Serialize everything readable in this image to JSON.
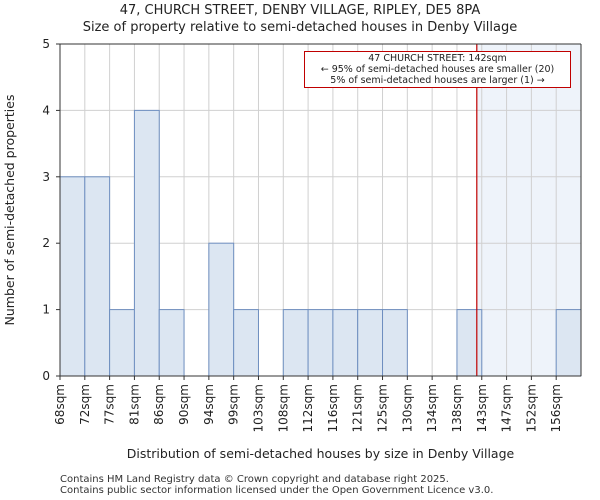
{
  "header": {
    "title_line1": "47, CHURCH STREET, DENBY VILLAGE, RIPLEY, DE5 8PA",
    "title_line2": "Size of property relative to semi-detached houses in Denby Village"
  },
  "footer": {
    "line1": "Contains HM Land Registry data © Crown copyright and database right 2025.",
    "line2": "Contains public sector information licensed under the Open Government Licence v3.0."
  },
  "annotation": {
    "line1": "47 CHURCH STREET: 142sqm",
    "line2": "← 95% of semi-detached houses are smaller (20)",
    "line3": "5% of semi-detached houses are larger (1) →"
  },
  "colors": {
    "bar_fill": "#dce6f2",
    "bar_stroke": "#6f8fc0",
    "marker": "#c00000",
    "grid": "#d0d0d0",
    "highlight": "#eef3fa"
  },
  "chart_data": {
    "type": "bar",
    "title": "Size of property relative to semi-detached houses in Denby Village",
    "xlabel": "Distribution of semi-detached houses by size in Denby Village",
    "ylabel": "Number of semi-detached properties",
    "categories": [
      "68sqm",
      "72sqm",
      "77sqm",
      "81sqm",
      "86sqm",
      "90sqm",
      "94sqm",
      "99sqm",
      "103sqm",
      "108sqm",
      "112sqm",
      "116sqm",
      "121sqm",
      "125sqm",
      "130sqm",
      "134sqm",
      "138sqm",
      "143sqm",
      "147sqm",
      "152sqm",
      "156sqm"
    ],
    "values": [
      3,
      3,
      1,
      4,
      1,
      0,
      2,
      1,
      0,
      1,
      1,
      1,
      1,
      1,
      0,
      0,
      1,
      0,
      0,
      0,
      1
    ],
    "ylim": [
      0,
      5
    ],
    "yticks": [
      0,
      1,
      2,
      3,
      4,
      5
    ],
    "grid": true,
    "marker_value_sqm": 142,
    "marker_label": "47 CHURCH STREET: 142sqm"
  }
}
